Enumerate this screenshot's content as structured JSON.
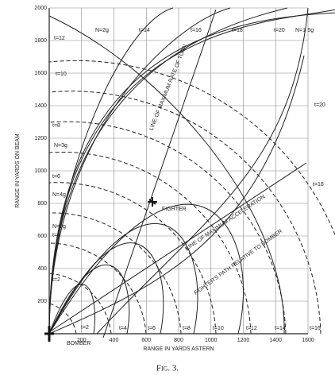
{
  "chart_data": {
    "type": "line",
    "title": "Fig. 3.",
    "xlabel": "RANGE IN YARDS ASTERN",
    "ylabel": "RANGE IN YARDS ON BEAM",
    "xlim": [
      0,
      1600
    ],
    "ylim": [
      0,
      2000
    ],
    "xticks": [
      200,
      400,
      600,
      800,
      1000,
      1200,
      1400,
      1600
    ],
    "yticks": [
      200,
      400,
      600,
      800,
      1000,
      1200,
      1400,
      1600,
      1800,
      2000
    ],
    "grid": true,
    "annotations": [
      "N=2g",
      "t=14",
      "t=16",
      "t=18",
      "t=20",
      "N=1·5g",
      "t=20",
      "t=18",
      "t=12",
      "t=10",
      "t=8",
      "N=3g",
      "t=6",
      "N=4g",
      "N=5g",
      "t=4",
      "t=2",
      "t=2",
      "t=4",
      "t=6",
      "t=8",
      "t=10",
      "t=12",
      "t=14",
      "t=16",
      "FIGHTER",
      "BOMBER",
      "LINE OF MAXIMUM RATE OF TURN",
      "LINE OF MAXIMUM ACCELERATION",
      "FIGHTER'S PATH RELATIVE TO BOMBER"
    ]
  }
}
